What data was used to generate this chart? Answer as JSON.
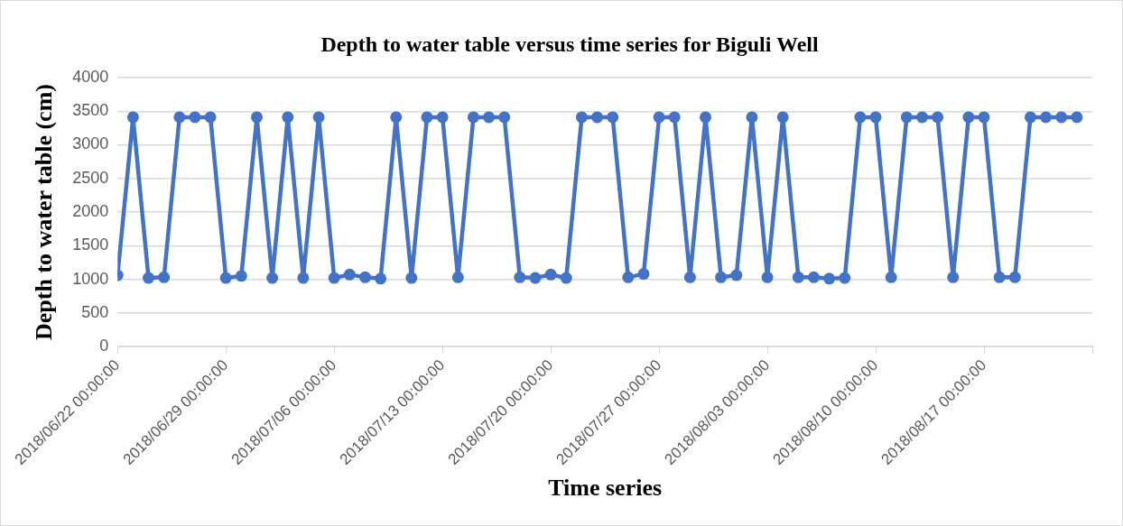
{
  "chart_data": {
    "type": "line",
    "title": "Depth to water table versus time series for Biguli Well",
    "xlabel": "Time series",
    "ylabel": "Depth to water table (cm)",
    "x": [
      "2018-06-22",
      "2018-06-23",
      "2018-06-24",
      "2018-06-25",
      "2018-06-26",
      "2018-06-27",
      "2018-06-28",
      "2018-06-29",
      "2018-06-30",
      "2018-07-01",
      "2018-07-02",
      "2018-07-03",
      "2018-07-04",
      "2018-07-05",
      "2018-07-06",
      "2018-07-07",
      "2018-07-08",
      "2018-07-09",
      "2018-07-10",
      "2018-07-11",
      "2018-07-12",
      "2018-07-13",
      "2018-07-14",
      "2018-07-15",
      "2018-07-16",
      "2018-07-17",
      "2018-07-18",
      "2018-07-19",
      "2018-07-20",
      "2018-07-21",
      "2018-07-22",
      "2018-07-23",
      "2018-07-24",
      "2018-07-25",
      "2018-07-26",
      "2018-07-27",
      "2018-07-28",
      "2018-07-29",
      "2018-07-30",
      "2018-07-31",
      "2018-08-01",
      "2018-08-02",
      "2018-08-03",
      "2018-08-04",
      "2018-08-05",
      "2018-08-06",
      "2018-08-07",
      "2018-08-08",
      "2018-08-09",
      "2018-08-10",
      "2018-08-11",
      "2018-08-12",
      "2018-08-13",
      "2018-08-14",
      "2018-08-15",
      "2018-08-16",
      "2018-08-17",
      "2018-08-18",
      "2018-08-19",
      "2018-08-20",
      "2018-08-21",
      "2018-08-22",
      "2018-08-23"
    ],
    "series": [
      {
        "color": "#4472c4",
        "values": [
          1060,
          3410,
          1020,
          1030,
          3410,
          3410,
          3410,
          1020,
          1050,
          3410,
          1020,
          3410,
          1020,
          3410,
          1020,
          1070,
          1030,
          1010,
          3410,
          1020,
          3410,
          3410,
          1030,
          3410,
          3410,
          3410,
          1030,
          1020,
          1070,
          1020,
          3410,
          3410,
          3410,
          1030,
          1080,
          3410,
          3410,
          1030,
          3410,
          1030,
          1060,
          3410,
          1030,
          3410,
          1030,
          1030,
          1010,
          1020,
          3410,
          3410,
          1030,
          3410,
          3410,
          3410,
          1030,
          3410,
          3410,
          1030,
          1030,
          3410,
          3410,
          3410,
          3410
        ]
      }
    ],
    "xlim": [
      "2018-06-22",
      "2018-08-24"
    ],
    "xticks": [
      {
        "value": "2018-06-22",
        "label": "2018/06/22 00:00:00"
      },
      {
        "value": "2018-06-29",
        "label": "2018/06/29 00:00:00"
      },
      {
        "value": "2018-07-06",
        "label": "2018/07/06 00:00:00"
      },
      {
        "value": "2018-07-13",
        "label": "2018/07/13 00:00:00"
      },
      {
        "value": "2018-07-20",
        "label": "2018/07/20 00:00:00"
      },
      {
        "value": "2018-07-27",
        "label": "2018/07/27 00:00:00"
      },
      {
        "value": "2018-08-03",
        "label": "2018/08/03 00:00:00"
      },
      {
        "value": "2018-08-10",
        "label": "2018/08/10 00:00:00"
      },
      {
        "value": "2018-08-17",
        "label": "2018/08/17 00:00:00"
      },
      {
        "value": "2018-08-24",
        "label": null
      }
    ],
    "ylim": [
      0,
      4000
    ],
    "yticks": [
      0,
      500,
      1000,
      1500,
      2000,
      2500,
      3000,
      3500,
      4000
    ],
    "grid": "y",
    "legend": false,
    "marker": "circle",
    "line_style": "solid"
  }
}
